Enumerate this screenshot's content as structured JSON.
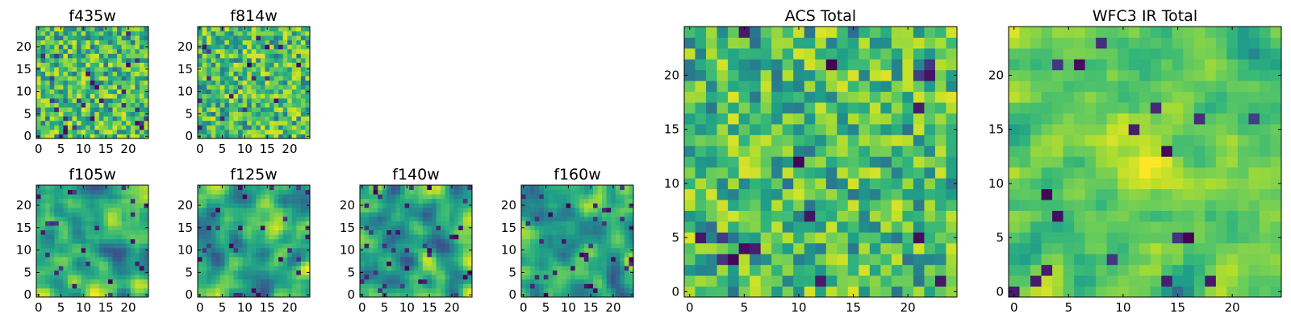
{
  "chart_data": [
    {
      "type": "heatmap",
      "title": "f435w",
      "xlabel": "",
      "ylabel": "",
      "x_ticks": [
        0,
        5,
        10,
        15,
        20
      ],
      "y_ticks": [
        0,
        5,
        10,
        15,
        20
      ],
      "xlim": [
        -0.5,
        24.5
      ],
      "ylim": [
        -0.5,
        24.5
      ],
      "grid_size": 25,
      "colormap": "viridis",
      "texture": "noise"
    },
    {
      "type": "heatmap",
      "title": "f814w",
      "xlabel": "",
      "ylabel": "",
      "x_ticks": [
        0,
        5,
        10,
        15,
        20
      ],
      "y_ticks": [
        0,
        5,
        10,
        15,
        20
      ],
      "xlim": [
        -0.5,
        24.5
      ],
      "ylim": [
        -0.5,
        24.5
      ],
      "grid_size": 25,
      "colormap": "viridis",
      "texture": "noise"
    },
    {
      "type": "heatmap",
      "title": "f105w",
      "xlabel": "",
      "ylabel": "",
      "x_ticks": [
        0,
        5,
        10,
        15,
        20
      ],
      "y_ticks": [
        0,
        5,
        10,
        15,
        20
      ],
      "xlim": [
        -0.5,
        24.5
      ],
      "ylim": [
        -0.5,
        24.5
      ],
      "grid_size": 25,
      "colormap": "viridis",
      "texture": "smooth"
    },
    {
      "type": "heatmap",
      "title": "f125w",
      "xlabel": "",
      "ylabel": "",
      "x_ticks": [
        0,
        5,
        10,
        15,
        20
      ],
      "y_ticks": [
        0,
        5,
        10,
        15,
        20
      ],
      "xlim": [
        -0.5,
        24.5
      ],
      "ylim": [
        -0.5,
        24.5
      ],
      "grid_size": 25,
      "colormap": "viridis",
      "texture": "smooth"
    },
    {
      "type": "heatmap",
      "title": "f140w",
      "xlabel": "",
      "ylabel": "",
      "x_ticks": [
        0,
        5,
        10,
        15,
        20
      ],
      "y_ticks": [
        0,
        5,
        10,
        15,
        20
      ],
      "xlim": [
        -0.5,
        24.5
      ],
      "ylim": [
        -0.5,
        24.5
      ],
      "grid_size": 25,
      "colormap": "viridis",
      "texture": "smooth"
    },
    {
      "type": "heatmap",
      "title": "f160w",
      "xlabel": "",
      "ylabel": "",
      "x_ticks": [
        0,
        5,
        10,
        15,
        20
      ],
      "y_ticks": [
        0,
        5,
        10,
        15,
        20
      ],
      "xlim": [
        -0.5,
        24.5
      ],
      "ylim": [
        -0.5,
        24.5
      ],
      "grid_size": 25,
      "colormap": "viridis",
      "texture": "smooth"
    },
    {
      "type": "heatmap",
      "title": "ACS Total",
      "xlabel": "",
      "ylabel": "",
      "x_ticks": [
        0,
        5,
        10,
        15,
        20
      ],
      "y_ticks": [
        0,
        5,
        10,
        15,
        20
      ],
      "xlim": [
        -0.5,
        24.5
      ],
      "ylim": [
        -0.5,
        24.5
      ],
      "grid_size": 25,
      "colormap": "viridis",
      "texture": "noise"
    },
    {
      "type": "heatmap",
      "title": "WFC3 IR Total",
      "xlabel": "",
      "ylabel": "",
      "x_ticks": [
        0,
        5,
        10,
        15,
        20
      ],
      "y_ticks": [
        0,
        5,
        10,
        15,
        20
      ],
      "xlim": [
        -0.5,
        24.5
      ],
      "ylim": [
        -0.5,
        24.5
      ],
      "grid_size": 25,
      "colormap": "viridis",
      "texture": "blob"
    }
  ]
}
